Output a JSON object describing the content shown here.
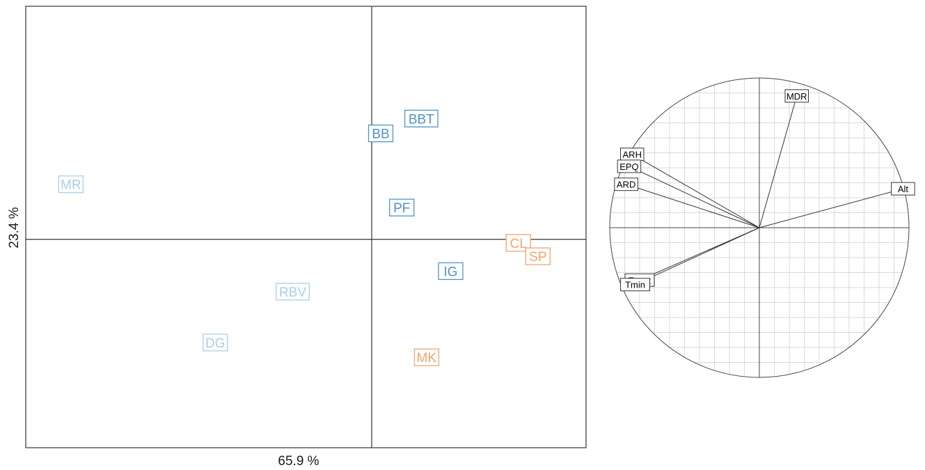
{
  "chart_data": [
    {
      "type": "scatter",
      "xlabel": "65.9 %",
      "ylabel": "23.4 %",
      "xlim": [
        -4.6,
        2.85
      ],
      "ylim": [
        -2.95,
        3.3
      ],
      "grid": false,
      "colors": {
        "light": "#a9cfe6",
        "medium": "#4e93c9",
        "orange": "#f3a46b"
      },
      "points": [
        {
          "label": "MR",
          "x": -4.0,
          "y": 0.78,
          "group": "light"
        },
        {
          "label": "BB",
          "x": 0.12,
          "y": 1.5,
          "group": "medium"
        },
        {
          "label": "BBT",
          "x": 0.66,
          "y": 1.71,
          "group": "medium"
        },
        {
          "label": "PF",
          "x": 0.4,
          "y": 0.45,
          "group": "medium"
        },
        {
          "label": "CL",
          "x": 1.95,
          "y": -0.05,
          "group": "orange"
        },
        {
          "label": "SP",
          "x": 2.21,
          "y": -0.24,
          "group": "orange"
        },
        {
          "label": "IG",
          "x": 1.05,
          "y": -0.45,
          "group": "medium"
        },
        {
          "label": "RBV",
          "x": -1.05,
          "y": -0.74,
          "group": "light"
        },
        {
          "label": "DG",
          "x": -2.08,
          "y": -1.46,
          "group": "light"
        },
        {
          "label": "MK",
          "x": 0.73,
          "y": -1.67,
          "group": "orange"
        }
      ]
    },
    {
      "type": "scatter",
      "subtype": "correlation-circle",
      "xlim": [
        -1,
        1
      ],
      "ylim": [
        -1,
        1
      ],
      "grid": true,
      "vectors": [
        {
          "label": "MDR",
          "x": 0.25,
          "y": 0.88
        },
        {
          "label": "ARH",
          "x": -0.85,
          "y": 0.49
        },
        {
          "label": "EPQ",
          "x": -0.87,
          "y": 0.41
        },
        {
          "label": "ARD",
          "x": -0.89,
          "y": 0.29
        },
        {
          "label": "Alt",
          "x": 0.96,
          "y": 0.26
        },
        {
          "label": "Tmax",
          "x": -0.8,
          "y": -0.35
        },
        {
          "label": "Tmin",
          "x": -0.83,
          "y": -0.38
        }
      ]
    }
  ]
}
